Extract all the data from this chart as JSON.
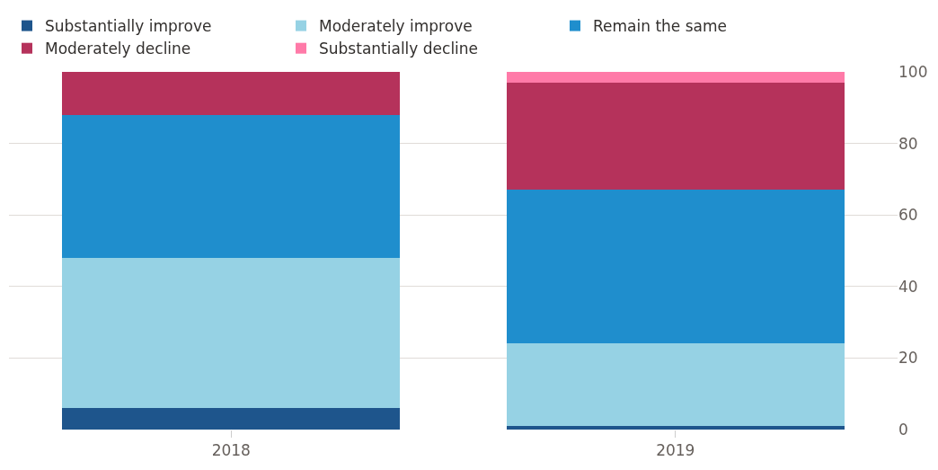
{
  "chart_data": {
    "type": "bar",
    "stacked": true,
    "categories": [
      "2018",
      "2019"
    ],
    "series": [
      {
        "name": "Substantially improve",
        "color": "#1e558c",
        "values": [
          6,
          1
        ]
      },
      {
        "name": "Moderately improve",
        "color": "#96d2e4",
        "values": [
          42,
          23
        ]
      },
      {
        "name": "Remain the same",
        "color": "#1f8ecd",
        "values": [
          40,
          43
        ]
      },
      {
        "name": "Moderately decline",
        "color": "#b5325b",
        "values": [
          12,
          30
        ]
      },
      {
        "name": "Substantially decline",
        "color": "#ff7aa8",
        "values": [
          0,
          3
        ]
      }
    ],
    "ylim": [
      0,
      100
    ],
    "yticks": [
      0,
      20,
      40,
      60,
      80,
      100
    ],
    "grid": "y",
    "legend": "top left"
  }
}
